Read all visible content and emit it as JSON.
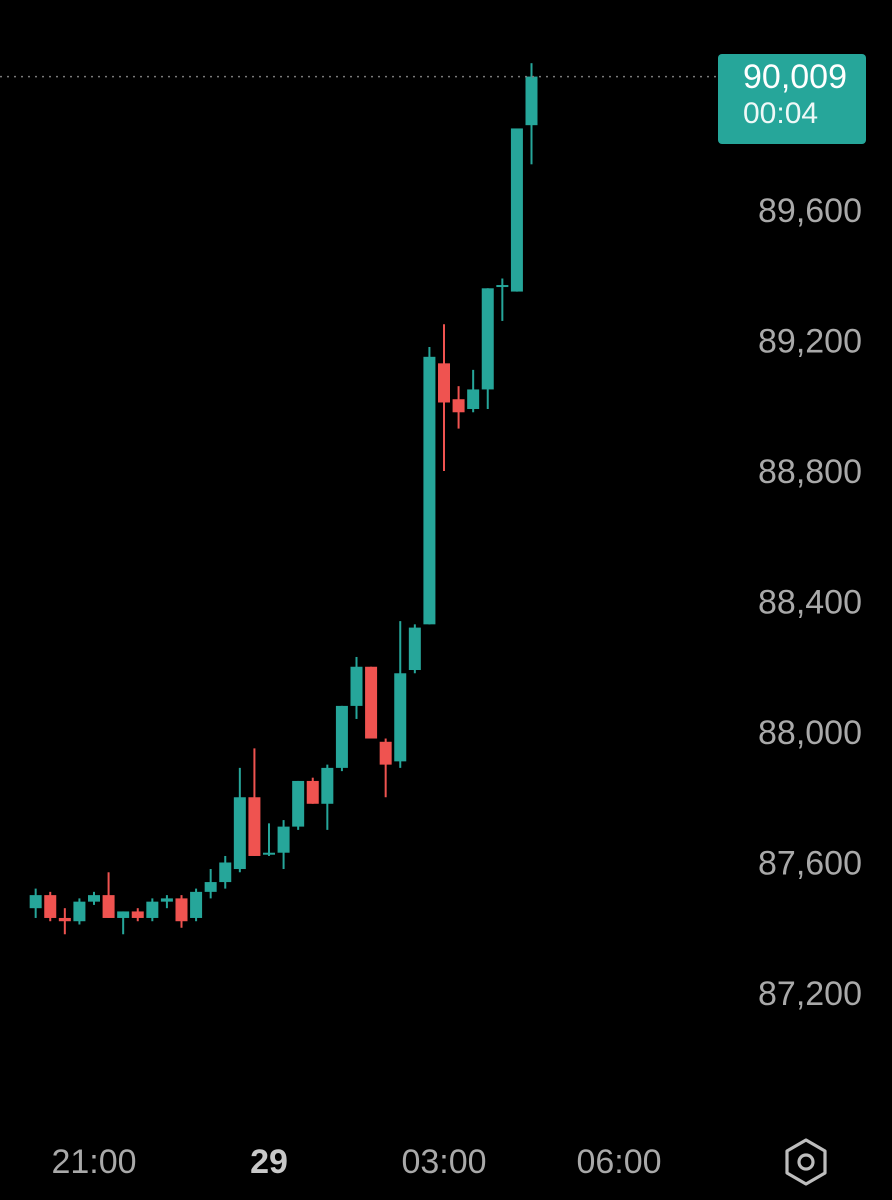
{
  "chart_data": {
    "type": "candlestick",
    "y_ticks": [
      "89,600",
      "89,200",
      "88,800",
      "88,400",
      "88,000",
      "87,600",
      "87,200"
    ],
    "y_tick_values": [
      89600,
      89200,
      88800,
      88400,
      88000,
      87600,
      87200
    ],
    "x_ticks": [
      "21:00",
      "29",
      "03:00",
      "06:00"
    ],
    "x_tick_hours": [
      21,
      24,
      27,
      30
    ],
    "bold_x_tick": "29",
    "colors": {
      "up": "#26a69a",
      "down": "#ef5350",
      "background": "#000000",
      "grid": "#7a7a7a"
    },
    "current_price": {
      "value": "90,009",
      "countdown": "00:04",
      "price": 90009
    },
    "candles": [
      {
        "t": 20.0,
        "o": 87460,
        "h": 87520,
        "l": 87430,
        "c": 87500
      },
      {
        "t": 20.25,
        "o": 87500,
        "h": 87510,
        "l": 87420,
        "c": 87430
      },
      {
        "t": 20.5,
        "o": 87430,
        "h": 87460,
        "l": 87380,
        "c": 87420
      },
      {
        "t": 20.75,
        "o": 87420,
        "h": 87490,
        "l": 87410,
        "c": 87480
      },
      {
        "t": 21.0,
        "o": 87480,
        "h": 87510,
        "l": 87470,
        "c": 87500
      },
      {
        "t": 21.25,
        "o": 87500,
        "h": 87570,
        "l": 87430,
        "c": 87430
      },
      {
        "t": 21.5,
        "o": 87430,
        "h": 87450,
        "l": 87380,
        "c": 87450
      },
      {
        "t": 21.75,
        "o": 87450,
        "h": 87460,
        "l": 87420,
        "c": 87430
      },
      {
        "t": 22.0,
        "o": 87430,
        "h": 87490,
        "l": 87420,
        "c": 87480
      },
      {
        "t": 22.25,
        "o": 87480,
        "h": 87500,
        "l": 87460,
        "c": 87490
      },
      {
        "t": 22.5,
        "o": 87490,
        "h": 87500,
        "l": 87400,
        "c": 87420
      },
      {
        "t": 22.75,
        "o": 87430,
        "h": 87520,
        "l": 87420,
        "c": 87510
      },
      {
        "t": 23.0,
        "o": 87510,
        "h": 87580,
        "l": 87490,
        "c": 87540
      },
      {
        "t": 23.25,
        "o": 87540,
        "h": 87620,
        "l": 87520,
        "c": 87600
      },
      {
        "t": 23.5,
        "o": 87580,
        "h": 87890,
        "l": 87570,
        "c": 87800
      },
      {
        "t": 23.75,
        "o": 87800,
        "h": 87950,
        "l": 87620,
        "c": 87620
      },
      {
        "t": 24.0,
        "o": 87630,
        "h": 87720,
        "l": 87620,
        "c": 87630
      },
      {
        "t": 24.25,
        "o": 87630,
        "h": 87730,
        "l": 87580,
        "c": 87710
      },
      {
        "t": 24.5,
        "o": 87710,
        "h": 87850,
        "l": 87700,
        "c": 87850
      },
      {
        "t": 24.75,
        "o": 87850,
        "h": 87860,
        "l": 87780,
        "c": 87780
      },
      {
        "t": 25.0,
        "o": 87780,
        "h": 87900,
        "l": 87700,
        "c": 87890
      },
      {
        "t": 25.25,
        "o": 87890,
        "h": 88080,
        "l": 87880,
        "c": 88080
      },
      {
        "t": 25.5,
        "o": 88080,
        "h": 88230,
        "l": 88040,
        "c": 88200
      },
      {
        "t": 25.75,
        "o": 88200,
        "h": 88200,
        "l": 87980,
        "c": 87980
      },
      {
        "t": 26.0,
        "o": 87970,
        "h": 87980,
        "l": 87800,
        "c": 87900
      },
      {
        "t": 26.25,
        "o": 87910,
        "h": 88340,
        "l": 87890,
        "c": 88180
      },
      {
        "t": 26.5,
        "o": 88190,
        "h": 88330,
        "l": 88180,
        "c": 88320
      },
      {
        "t": 26.75,
        "o": 88330,
        "h": 89180,
        "l": 88330,
        "c": 89150
      },
      {
        "t": 27.0,
        "o": 89130,
        "h": 89250,
        "l": 88800,
        "c": 89010
      },
      {
        "t": 27.25,
        "o": 89020,
        "h": 89060,
        "l": 88930,
        "c": 88980
      },
      {
        "t": 27.5,
        "o": 88990,
        "h": 89110,
        "l": 88980,
        "c": 89050
      },
      {
        "t": 27.75,
        "o": 89050,
        "h": 89360,
        "l": 88990,
        "c": 89360
      },
      {
        "t": 28.0,
        "o": 89370,
        "h": 89390,
        "l": 89260,
        "c": 89370
      },
      {
        "t": 28.25,
        "o": 89350,
        "h": 89850,
        "l": 89350,
        "c": 89850
      },
      {
        "t": 28.5,
        "o": 89860,
        "h": 90050,
        "l": 89740,
        "c": 90009
      }
    ]
  }
}
